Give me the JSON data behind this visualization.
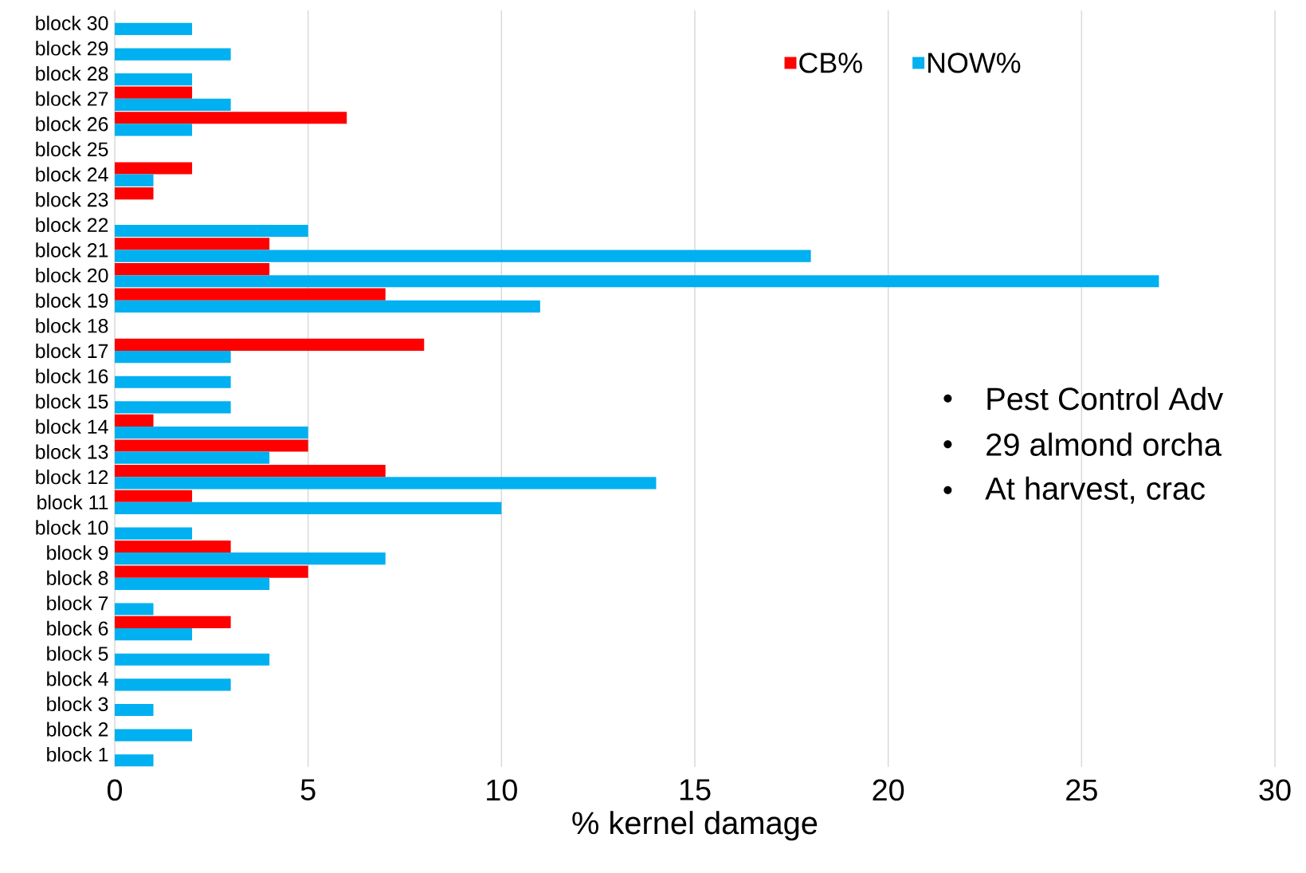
{
  "chart_data": {
    "type": "bar",
    "orientation": "horizontal",
    "categories": [
      "block 30",
      "block 29",
      "block 28",
      "block 27",
      "block 26",
      "block 25",
      "block 24",
      "block 23",
      "block 22",
      "block 21",
      "block 20",
      "block 19",
      "block 18",
      "block 17",
      "block 16",
      "block 15",
      "block 14",
      "block 13",
      "block 12",
      "block 11",
      "block 10",
      "block 9",
      "block 8",
      "block 7",
      "block 6",
      "block 5",
      "block 4",
      "block 3",
      "block 2",
      "block 1"
    ],
    "series": [
      {
        "name": "CB%",
        "color": "#ff0000",
        "values": [
          0,
          0,
          0,
          2,
          6,
          0,
          2,
          1,
          0,
          4,
          4,
          7,
          0,
          8,
          0,
          0,
          1,
          5,
          7,
          2,
          0,
          3,
          5,
          0,
          3,
          0,
          0,
          0,
          0,
          0
        ]
      },
      {
        "name": "NOW%",
        "color": "#00b0f0",
        "values": [
          2,
          3,
          2,
          3,
          2,
          0,
          1,
          0,
          5,
          18,
          27,
          11,
          0,
          3,
          3,
          3,
          5,
          4,
          14,
          10,
          2,
          7,
          4,
          1,
          2,
          4,
          3,
          1,
          2,
          1
        ]
      }
    ],
    "xlim": [
      0,
      30
    ],
    "xticks": [
      0,
      5,
      10,
      15,
      20,
      25,
      30
    ],
    "xlabel": "% kernel damage",
    "grid": "x",
    "legend": "top",
    "annotations": [
      "Pest Control Adv",
      "29 almond orcha",
      "At harvest, crac"
    ]
  }
}
